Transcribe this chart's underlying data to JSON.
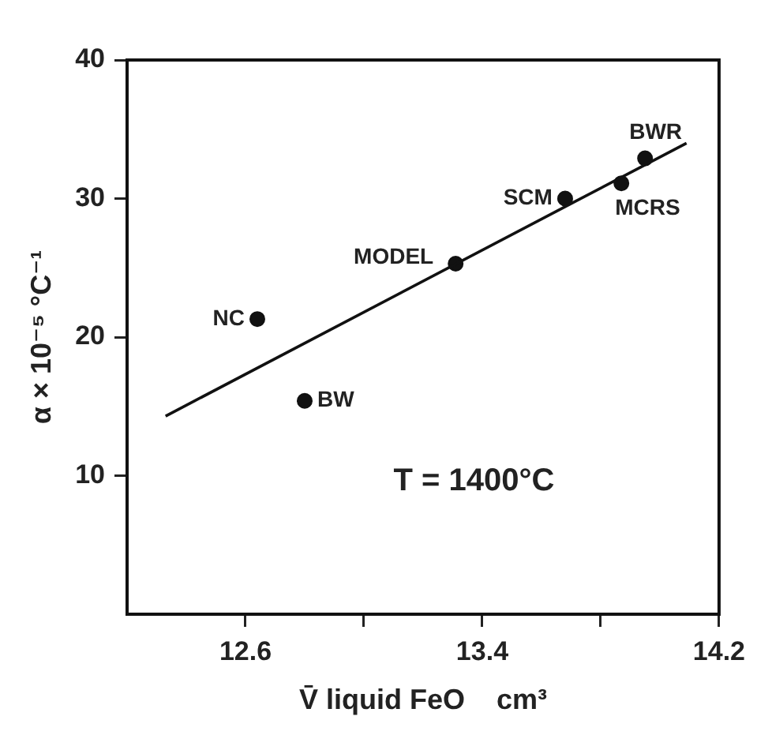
{
  "chart_data": {
    "type": "scatter",
    "xlabel": "V̄ liquid FeO    cm³",
    "ylabel": "α × 10⁻⁵ °C⁻¹",
    "xlim": [
      12.2,
      14.2
    ],
    "xticks": [
      12.6,
      {
        "value": 13.0,
        "label": null
      },
      13.4,
      {
        "value": 13.8,
        "label": null
      },
      14.2
    ],
    "ylim": [
      0,
      40
    ],
    "yticks": [
      10,
      20,
      30,
      40
    ],
    "grid": false,
    "legend": false,
    "marker": "circle",
    "annotations": [
      "T = 1400°C"
    ],
    "series": [
      {
        "type": "line",
        "marker": "none",
        "color": "#111111",
        "x": [
          12.33,
          14.09
        ],
        "values": [
          14.3,
          34.0
        ]
      },
      {
        "name": "NC",
        "color": "#111111",
        "x": [
          12.64
        ],
        "values": [
          21.3
        ]
      },
      {
        "name": "BW",
        "color": "#111111",
        "x": [
          12.8
        ],
        "values": [
          15.4
        ]
      },
      {
        "name": "MODEL",
        "color": "#111111",
        "x": [
          13.31
        ],
        "values": [
          25.3
        ]
      },
      {
        "name": "SCM",
        "color": "#111111",
        "x": [
          13.68
        ],
        "values": [
          30.0
        ]
      },
      {
        "name": "MCRS",
        "color": "#111111",
        "x": [
          13.87
        ],
        "values": [
          31.1
        ]
      },
      {
        "name": "BWR",
        "color": "#111111",
        "x": [
          13.95
        ],
        "values": [
          32.9
        ]
      }
    ]
  }
}
